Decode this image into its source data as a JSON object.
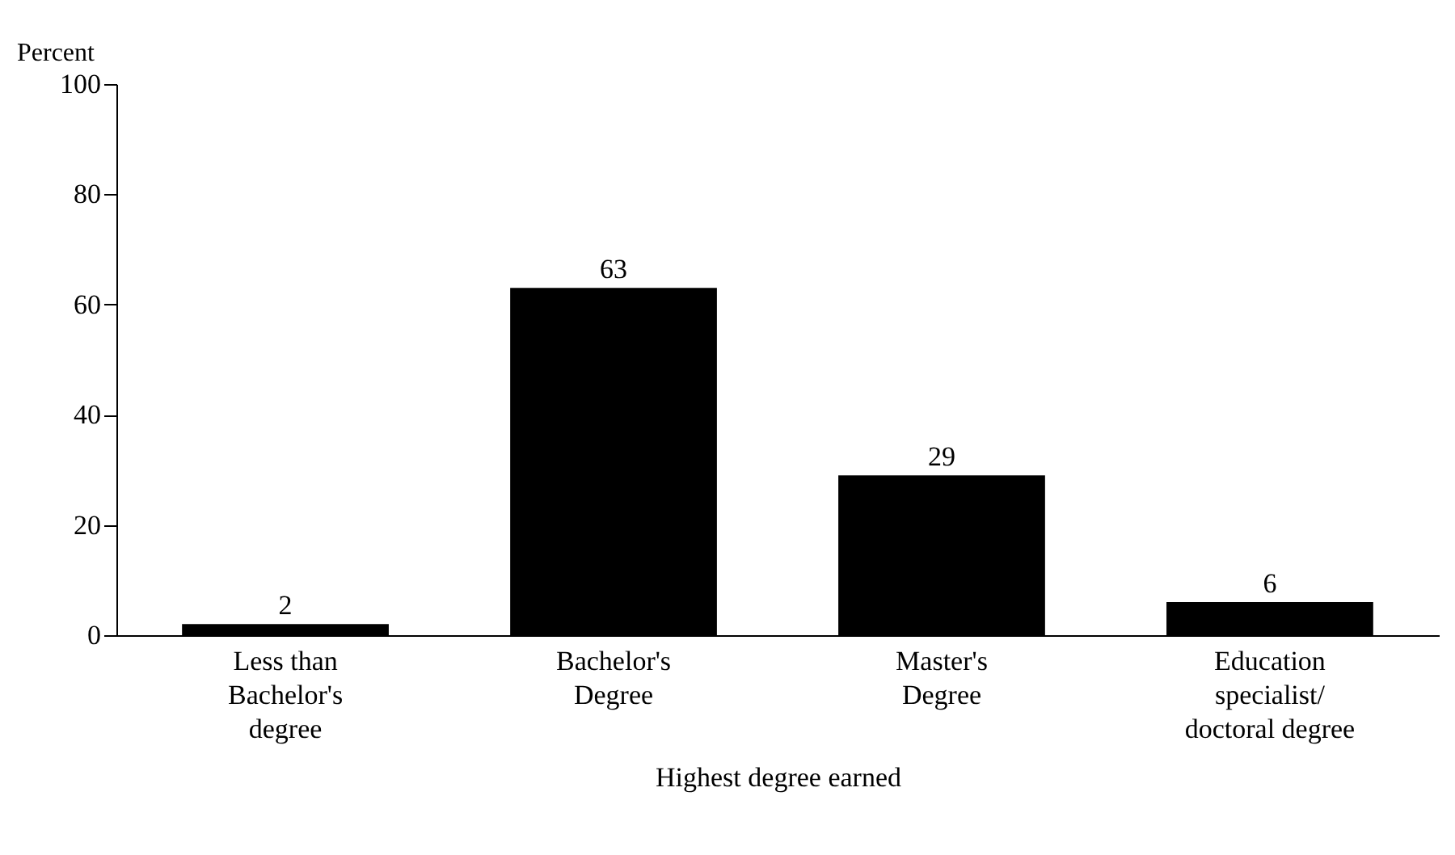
{
  "chart_data": {
    "type": "bar",
    "xlabel": "Highest degree earned",
    "ylabel": "Percent",
    "categories": [
      "Less than\nBachelor's\ndegree",
      "Bachelor's\nDegree",
      "Master's\nDegree",
      "Education\nspecialist/\ndoctoral degree"
    ],
    "values": [
      2,
      63,
      29,
      6
    ],
    "color": "#000000",
    "ylim": [
      0,
      100
    ],
    "yticks": [
      0,
      20,
      40,
      60,
      80,
      100
    ],
    "grid": false,
    "data_labels": true
  }
}
